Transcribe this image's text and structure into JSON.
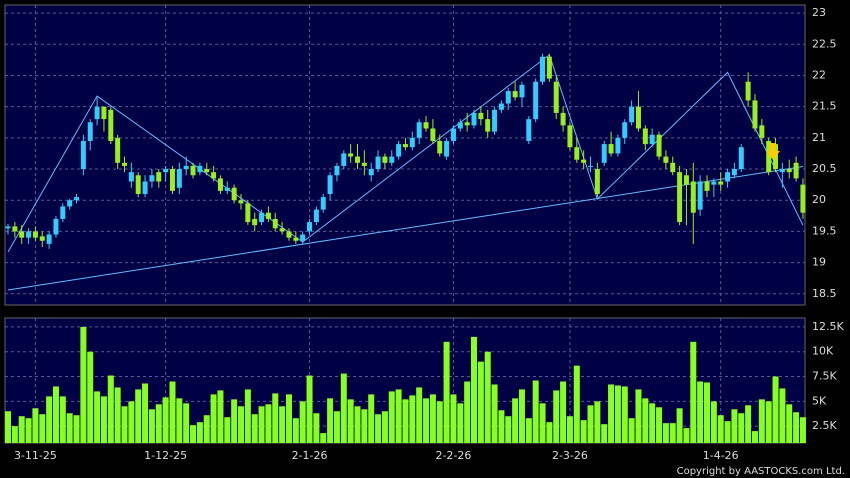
{
  "chart_data": {
    "type": "candlestick",
    "copyright": "Copyright by AASTOCKS.com Ltd.",
    "up_color": "#33ccff",
    "down_color": "#99ee22",
    "volume_color": "#88ff22",
    "line_color": "#66bbff",
    "ylim": [
      18.32,
      23.13
    ],
    "yticks": [
      18.5,
      19,
      19.5,
      20,
      20.5,
      21,
      21.5,
      22,
      22.5,
      23
    ],
    "volume_ylim": [
      800,
      13400
    ],
    "volume_ticks": [
      {
        "value": 2500,
        "label": "2.5K"
      },
      {
        "value": 5000,
        "label": "5K"
      },
      {
        "value": 7500,
        "label": "7.5K"
      },
      {
        "value": 10000,
        "label": "10K"
      },
      {
        "value": 12500,
        "label": "12.5K"
      }
    ],
    "grid": true,
    "label_index": [
      4,
      23,
      44,
      65,
      82,
      104
    ],
    "labels": [
      "3-11-25",
      "1-12-25",
      "2-1-26",
      "2-2-26",
      "2-3-26",
      "1-4-26"
    ],
    "ohlc": [
      [
        19.55,
        19.62,
        19.45,
        19.58
      ],
      [
        19.58,
        19.65,
        19.4,
        19.5
      ],
      [
        19.5,
        19.6,
        19.3,
        19.4
      ],
      [
        19.4,
        19.55,
        19.3,
        19.5
      ],
      [
        19.5,
        19.58,
        19.35,
        19.4
      ],
      [
        19.42,
        19.5,
        19.25,
        19.35
      ],
      [
        19.3,
        19.5,
        19.22,
        19.45
      ],
      [
        19.45,
        19.75,
        19.4,
        19.7
      ],
      [
        19.7,
        19.95,
        19.65,
        19.9
      ],
      [
        19.9,
        20.02,
        19.85,
        20.0
      ],
      [
        20.0,
        20.1,
        19.95,
        20.05
      ],
      [
        20.5,
        21.05,
        20.4,
        20.95
      ],
      [
        20.95,
        21.3,
        20.8,
        21.25
      ],
      [
        21.3,
        21.65,
        21.2,
        21.5
      ],
      [
        21.5,
        21.5,
        21.1,
        21.3
      ],
      [
        21.45,
        21.5,
        20.9,
        20.95
      ],
      [
        21.0,
        21.05,
        20.5,
        20.6
      ],
      [
        20.6,
        20.7,
        20.45,
        20.55
      ],
      [
        20.3,
        20.6,
        20.2,
        20.45
      ],
      [
        20.4,
        20.45,
        20.05,
        20.1
      ],
      [
        20.1,
        20.4,
        20.05,
        20.3
      ],
      [
        20.3,
        20.5,
        20.2,
        20.4
      ],
      [
        20.45,
        20.5,
        20.2,
        20.3
      ],
      [
        20.45,
        20.55,
        20.3,
        20.5
      ],
      [
        20.5,
        20.55,
        20.1,
        20.15
      ],
      [
        20.2,
        20.6,
        20.1,
        20.5
      ],
      [
        20.5,
        20.7,
        20.4,
        20.55
      ],
      [
        20.55,
        20.6,
        20.35,
        20.4
      ],
      [
        20.45,
        20.6,
        20.4,
        20.55
      ],
      [
        20.5,
        20.6,
        20.4,
        20.45
      ],
      [
        20.45,
        20.55,
        20.3,
        20.35
      ],
      [
        20.35,
        20.4,
        20.1,
        20.15
      ],
      [
        20.15,
        20.3,
        20.1,
        20.2
      ],
      [
        20.2,
        20.25,
        19.95,
        20.0
      ],
      [
        20.0,
        20.1,
        19.85,
        19.95
      ],
      [
        19.95,
        20.0,
        19.6,
        19.65
      ],
      [
        19.7,
        19.8,
        19.5,
        19.6
      ],
      [
        19.65,
        19.85,
        19.6,
        19.8
      ],
      [
        19.8,
        19.9,
        19.65,
        19.7
      ],
      [
        19.7,
        19.8,
        19.5,
        19.55
      ],
      [
        19.55,
        19.65,
        19.45,
        19.5
      ],
      [
        19.5,
        19.55,
        19.35,
        19.4
      ],
      [
        19.4,
        19.5,
        19.3,
        19.35
      ],
      [
        19.35,
        19.5,
        19.3,
        19.45
      ],
      [
        19.5,
        19.7,
        19.45,
        19.65
      ],
      [
        19.65,
        19.9,
        19.6,
        19.85
      ],
      [
        19.85,
        20.1,
        19.8,
        20.05
      ],
      [
        20.1,
        20.45,
        20.0,
        20.4
      ],
      [
        20.4,
        20.6,
        20.3,
        20.55
      ],
      [
        20.55,
        20.8,
        20.5,
        20.75
      ],
      [
        20.75,
        20.9,
        20.6,
        20.7
      ],
      [
        20.7,
        20.9,
        20.5,
        20.6
      ],
      [
        20.6,
        20.8,
        20.4,
        20.55
      ],
      [
        20.4,
        20.6,
        20.3,
        20.5
      ],
      [
        20.5,
        20.8,
        20.45,
        20.7
      ],
      [
        20.7,
        20.75,
        20.5,
        20.6
      ],
      [
        20.6,
        20.8,
        20.55,
        20.7
      ],
      [
        20.7,
        20.95,
        20.65,
        20.9
      ],
      [
        20.9,
        21.0,
        20.8,
        20.85
      ],
      [
        20.85,
        21.1,
        20.8,
        21.0
      ],
      [
        21.0,
        21.3,
        20.9,
        21.25
      ],
      [
        21.25,
        21.35,
        21.1,
        21.15
      ],
      [
        21.15,
        21.3,
        20.9,
        20.95
      ],
      [
        20.95,
        21.05,
        20.7,
        20.75
      ],
      [
        20.7,
        21.0,
        20.65,
        20.95
      ],
      [
        20.95,
        21.2,
        20.9,
        21.15
      ],
      [
        21.15,
        21.3,
        21.1,
        21.25
      ],
      [
        21.25,
        21.4,
        21.1,
        21.2
      ],
      [
        21.2,
        21.45,
        21.15,
        21.4
      ],
      [
        21.4,
        21.5,
        21.2,
        21.3
      ],
      [
        21.3,
        21.45,
        21.0,
        21.1
      ],
      [
        21.1,
        21.5,
        21.05,
        21.45
      ],
      [
        21.45,
        21.6,
        21.4,
        21.55
      ],
      [
        21.55,
        21.8,
        21.45,
        21.75
      ],
      [
        21.75,
        21.9,
        21.6,
        21.65
      ],
      [
        21.65,
        21.9,
        21.5,
        21.85
      ],
      [
        20.95,
        21.35,
        20.9,
        21.3
      ],
      [
        21.3,
        21.95,
        21.25,
        21.9
      ],
      [
        21.9,
        22.35,
        21.85,
        22.3
      ],
      [
        22.3,
        22.35,
        21.9,
        21.95
      ],
      [
        21.9,
        22.0,
        21.3,
        21.4
      ],
      [
        21.4,
        21.5,
        21.1,
        21.2
      ],
      [
        21.2,
        21.25,
        20.8,
        20.85
      ],
      [
        20.85,
        21.0,
        20.6,
        20.65
      ],
      [
        20.65,
        20.8,
        20.5,
        20.6
      ],
      [
        20.55,
        20.7,
        20.45,
        20.55
      ],
      [
        20.5,
        20.6,
        20.05,
        20.1
      ],
      [
        20.6,
        20.95,
        20.55,
        20.9
      ],
      [
        20.9,
        21.1,
        20.7,
        20.75
      ],
      [
        20.75,
        21.05,
        20.7,
        21.0
      ],
      [
        21.0,
        21.3,
        20.9,
        21.25
      ],
      [
        21.25,
        21.6,
        21.2,
        21.5
      ],
      [
        21.5,
        21.75,
        21.1,
        21.15
      ],
      [
        21.15,
        21.2,
        20.8,
        20.9
      ],
      [
        20.9,
        21.15,
        20.85,
        21.05
      ],
      [
        21.05,
        21.1,
        20.65,
        20.7
      ],
      [
        20.7,
        20.8,
        20.5,
        20.6
      ],
      [
        20.6,
        20.7,
        20.4,
        20.45
      ],
      [
        20.45,
        20.55,
        19.6,
        19.65
      ],
      [
        20.4,
        20.5,
        19.6,
        20.25
      ],
      [
        20.3,
        20.6,
        19.3,
        19.8
      ],
      [
        19.85,
        20.4,
        19.75,
        20.3
      ],
      [
        20.3,
        20.4,
        20.05,
        20.15
      ],
      [
        20.25,
        20.35,
        20.05,
        20.3
      ],
      [
        20.3,
        20.45,
        20.15,
        20.25
      ],
      [
        20.3,
        20.5,
        20.2,
        20.45
      ],
      [
        20.4,
        20.6,
        20.35,
        20.5
      ],
      [
        20.5,
        20.9,
        20.45,
        20.85
      ],
      [
        21.9,
        22.05,
        21.5,
        21.6
      ],
      [
        21.6,
        21.7,
        21.1,
        21.15
      ],
      [
        21.2,
        21.3,
        20.9,
        21.0
      ],
      [
        20.95,
        21.0,
        20.4,
        20.45
      ],
      [
        20.9,
        21.0,
        20.45,
        20.5
      ],
      [
        20.45,
        20.6,
        20.2,
        20.5
      ],
      [
        20.5,
        20.65,
        20.35,
        20.45
      ],
      [
        20.6,
        20.7,
        20.3,
        20.35
      ],
      [
        20.25,
        20.35,
        19.7,
        19.8
      ]
    ],
    "volume": [
      4000,
      2500,
      3500,
      3300,
      4300,
      3700,
      5500,
      6500,
      5500,
      3800,
      3600,
      12500,
      10000,
      6000,
      5500,
      7600,
      6400,
      4500,
      5000,
      6200,
      6800,
      4200,
      4700,
      5400,
      7000,
      5300,
      4800,
      2600,
      2900,
      3600,
      5700,
      6100,
      3400,
      5200,
      4500,
      6200,
      3700,
      4500,
      4700,
      5800,
      4500,
      5700,
      3300,
      5000,
      7600,
      3800,
      1800,
      5300,
      4000,
      7800,
      5200,
      4500,
      4200,
      5700,
      3700,
      4000,
      6000,
      6200,
      5200,
      5600,
      6400,
      5300,
      5700,
      5000,
      11000,
      5700,
      4800,
      7000,
      11500,
      9000,
      10000,
      6700,
      4100,
      3500,
      5300,
      6200,
      3300,
      7100,
      4800,
      2900,
      6100,
      7000,
      3500,
      8600,
      3100,
      4600,
      5000,
      2700,
      6700,
      6600,
      6500,
      3300,
      6200,
      5300,
      4800,
      4400,
      2800,
      2800,
      4300,
      2300,
      11000,
      7000,
      6900,
      5000,
      3600,
      3000,
      4200,
      3800,
      4600,
      2000,
      5200,
      5000,
      7500,
      6300,
      4700,
      3900,
      3400
    ],
    "zigzag": {
      "x": [
        0,
        13,
        43,
        79,
        86,
        105,
        116
      ],
      "y": [
        19.17,
        21.67,
        19.33,
        22.33,
        20.02,
        22.05,
        19.6
      ]
    },
    "support": {
      "x": [
        0,
        116
      ],
      "y": [
        18.56,
        20.54
      ]
    }
  }
}
